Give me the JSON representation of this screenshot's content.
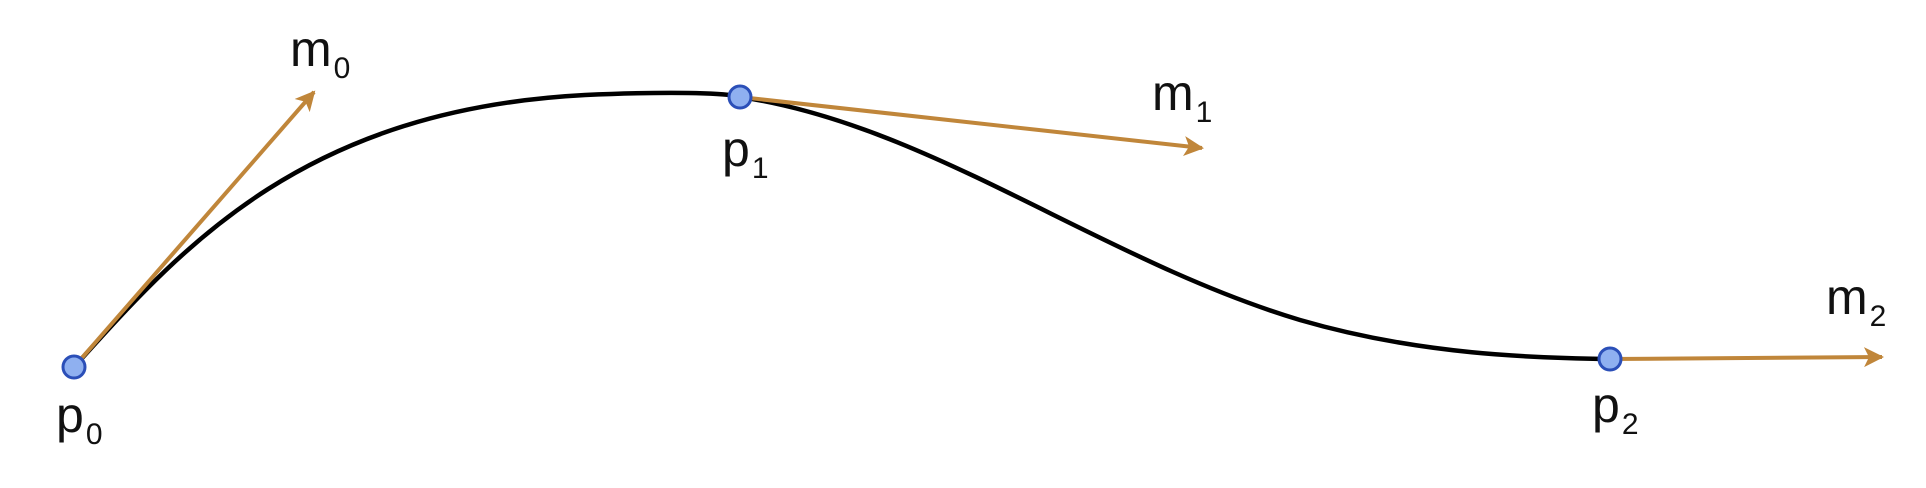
{
  "colors": {
    "curve": "#000000",
    "tangent": "#c0863a",
    "point_fill": "#8fb0f0",
    "point_stroke": "#2b4fb8",
    "background": "#ffffff"
  },
  "points": [
    {
      "name": "p",
      "index": "0"
    },
    {
      "name": "p",
      "index": "1"
    },
    {
      "name": "p",
      "index": "2"
    }
  ],
  "tangents": [
    {
      "name": "m",
      "index": "0"
    },
    {
      "name": "m",
      "index": "1"
    },
    {
      "name": "m",
      "index": "2"
    }
  ]
}
